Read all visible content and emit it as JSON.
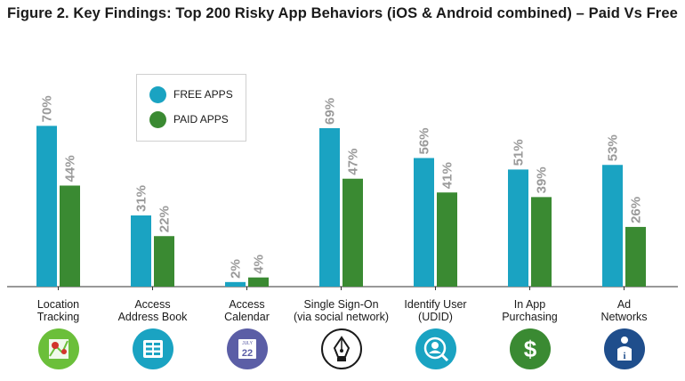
{
  "title": "Figure 2. Key Findings: Top 200 Risky App Behaviors (iOS & Android combined) – Paid Vs Free",
  "colors": {
    "free": "#1aa3c2",
    "paid": "#3a8a32",
    "label": "#9a9a9a"
  },
  "legend": {
    "free": "FREE APPS",
    "paid": "PAID APPS"
  },
  "chart_data": {
    "type": "bar",
    "title": "Figure 2. Key Findings: Top 200 Risky App Behaviors (iOS & Android combined) – Paid Vs Free",
    "categories": [
      [
        "Location",
        "Tracking"
      ],
      [
        "Access",
        "Address Book"
      ],
      [
        "Access",
        "Calendar"
      ],
      [
        "Single Sign-On",
        "(via social network)"
      ],
      [
        "Identify User",
        "(UDID)"
      ],
      [
        "In App",
        "Purchasing"
      ],
      [
        "Ad",
        "Networks"
      ]
    ],
    "series": [
      {
        "name": "FREE APPS",
        "values": [
          70,
          31,
          2,
          69,
          56,
          51,
          53
        ],
        "labels": [
          "70%",
          "31%",
          "2%",
          "69%",
          "56%",
          "51%",
          "53%"
        ]
      },
      {
        "name": "PAID APPS",
        "values": [
          44,
          22,
          4,
          47,
          41,
          39,
          26
        ],
        "labels": [
          "44%",
          "22%",
          "4%",
          "47%",
          "41%",
          "39%",
          "26%"
        ]
      }
    ],
    "ylim": [
      0,
      100
    ],
    "grid": false,
    "legend_position": "top-left",
    "icons": [
      "map-pin-icon",
      "address-book-icon",
      "calendar-icon",
      "pen-nib-icon",
      "user-search-icon",
      "dollar-icon",
      "info-person-icon"
    ],
    "icon_colors": [
      "#6bbf3a",
      "#1aa3c2",
      "#5b5ea6",
      "#1a1a1a",
      "#1aa3c2",
      "#3a8a32",
      "#1f4e8c"
    ],
    "calendar": {
      "month": "JULY",
      "day": "22"
    }
  }
}
